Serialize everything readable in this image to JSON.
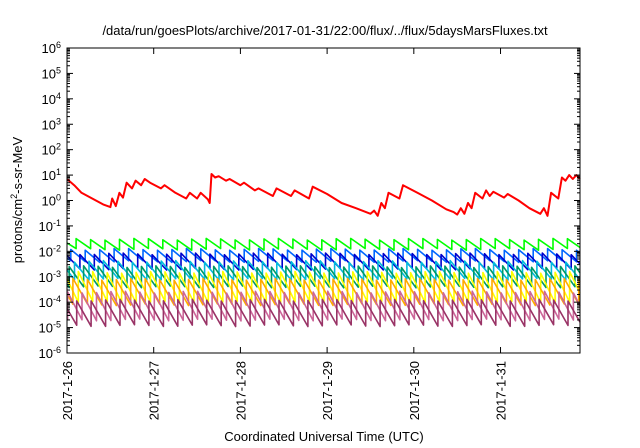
{
  "chart_data": {
    "type": "line",
    "title": "/data/run/goesPlots/archive/2017-01-31/22:00/flux/../flux/5daysMarsFluxes.txt",
    "xlabel": "Coordinated Universal Time (UTC)",
    "ylabel_parts": [
      "protons/cm",
      "2",
      "-s-sr-MeV"
    ],
    "yscale": "log",
    "ylim": [
      1e-06,
      1000000.0
    ],
    "xlim": [
      "2017-01-26T00:00",
      "2017-01-31T22:00"
    ],
    "x_ticks": [
      "2017-1-26",
      "2017-1-27",
      "2017-1-28",
      "2017-1-29",
      "2017-1-30",
      "2017-1-31"
    ],
    "y_ticks": [
      {
        "base": "10",
        "exp": "-6"
      },
      {
        "base": "10",
        "exp": "-5"
      },
      {
        "base": "10",
        "exp": "-4"
      },
      {
        "base": "10",
        "exp": "-3"
      },
      {
        "base": "10",
        "exp": "-2"
      },
      {
        "base": "10",
        "exp": "-1"
      },
      {
        "base": "10",
        "exp": "0"
      },
      {
        "base": "10",
        "exp": "1"
      },
      {
        "base": "10",
        "exp": "2"
      },
      {
        "base": "10",
        "exp": "3"
      },
      {
        "base": "10",
        "exp": "4"
      },
      {
        "base": "10",
        "exp": "5"
      },
      {
        "base": "10",
        "exp": "6"
      }
    ],
    "grid": false,
    "legend": "none",
    "sawtooth_period_hours": 4,
    "series": [
      {
        "color": "#ff0000",
        "style": "sawtooth-decay",
        "points": [
          [
            "2017-01-26T00:00",
            7
          ],
          [
            "2017-01-26T02:00",
            4
          ],
          [
            "2017-01-26T04:00",
            2
          ],
          [
            "2017-01-26T08:00",
            1
          ],
          [
            "2017-01-26T10:00",
            0.7
          ],
          [
            "2017-01-26T12:00",
            0.55
          ],
          [
            "2017-01-26T12:30",
            1.2
          ],
          [
            "2017-01-26T13:30",
            0.6
          ],
          [
            "2017-01-26T14:30",
            2
          ],
          [
            "2017-01-26T15:30",
            1.3
          ],
          [
            "2017-01-26T16:30",
            5
          ],
          [
            "2017-01-26T18:00",
            3
          ],
          [
            "2017-01-26T19:00",
            6
          ],
          [
            "2017-01-26T20:30",
            4
          ],
          [
            "2017-01-26T21:30",
            7
          ],
          [
            "2017-01-26T23:00",
            5
          ],
          [
            "2017-01-27T02:00",
            3
          ],
          [
            "2017-01-27T03:00",
            4
          ],
          [
            "2017-01-27T06:00",
            2
          ],
          [
            "2017-01-27T09:00",
            1.2
          ],
          [
            "2017-01-27T10:00",
            2
          ],
          [
            "2017-01-27T12:00",
            1.2
          ],
          [
            "2017-01-27T13:00",
            2
          ],
          [
            "2017-01-27T15:00",
            1.1
          ],
          [
            "2017-01-27T15:30",
            0.8
          ],
          [
            "2017-01-27T16:00",
            11
          ],
          [
            "2017-01-27T17:00",
            8
          ],
          [
            "2017-01-27T18:00",
            9
          ],
          [
            "2017-01-27T20:00",
            6
          ],
          [
            "2017-01-27T21:00",
            7
          ],
          [
            "2017-01-28T00:00",
            4
          ],
          [
            "2017-01-28T01:00",
            5
          ],
          [
            "2017-01-28T04:00",
            2.5
          ],
          [
            "2017-01-28T05:00",
            3
          ],
          [
            "2017-01-28T09:00",
            1.5
          ],
          [
            "2017-01-28T10:00",
            3
          ],
          [
            "2017-01-28T14:00",
            1.5
          ],
          [
            "2017-01-28T15:00",
            2.5
          ],
          [
            "2017-01-28T19:00",
            1.2
          ],
          [
            "2017-01-28T20:00",
            3.5
          ],
          [
            "2017-01-29T00:00",
            1.8
          ],
          [
            "2017-01-29T04:00",
            0.8
          ],
          [
            "2017-01-29T08:00",
            0.5
          ],
          [
            "2017-01-29T12:00",
            0.3
          ],
          [
            "2017-01-29T13:00",
            0.4
          ],
          [
            "2017-01-29T14:00",
            0.25
          ],
          [
            "2017-01-29T15:00",
            0.8
          ],
          [
            "2017-01-29T16:00",
            0.5
          ],
          [
            "2017-01-29T17:00",
            2
          ],
          [
            "2017-01-29T20:00",
            1.2
          ],
          [
            "2017-01-29T21:00",
            4
          ],
          [
            "2017-01-30T01:00",
            2
          ],
          [
            "2017-01-30T05:00",
            1
          ],
          [
            "2017-01-30T09:00",
            0.45
          ],
          [
            "2017-01-30T11:00",
            0.35
          ],
          [
            "2017-01-30T12:00",
            0.28
          ],
          [
            "2017-01-30T13:00",
            0.5
          ],
          [
            "2017-01-30T14:00",
            0.3
          ],
          [
            "2017-01-30T15:00",
            0.8
          ],
          [
            "2017-01-30T16:00",
            0.5
          ],
          [
            "2017-01-30T17:00",
            2
          ],
          [
            "2017-01-30T19:00",
            1.2
          ],
          [
            "2017-01-30T20:00",
            2.5
          ],
          [
            "2017-01-30T21:00",
            1.5
          ],
          [
            "2017-01-30T22:00",
            2.2
          ],
          [
            "2017-01-31T01:00",
            1.3
          ],
          [
            "2017-01-31T02:00",
            1.8
          ],
          [
            "2017-01-31T05:00",
            1
          ],
          [
            "2017-01-31T08:00",
            0.5
          ],
          [
            "2017-01-31T11:00",
            0.3
          ],
          [
            "2017-01-31T12:00",
            0.5
          ],
          [
            "2017-01-31T13:00",
            0.25
          ],
          [
            "2017-01-31T14:00",
            2
          ],
          [
            "2017-01-31T16:00",
            1.2
          ],
          [
            "2017-01-31T17:00",
            8
          ],
          [
            "2017-01-31T18:00",
            6
          ],
          [
            "2017-01-31T19:00",
            10
          ],
          [
            "2017-01-31T20:00",
            7
          ],
          [
            "2017-01-31T21:00",
            10
          ],
          [
            "2017-01-31T22:00",
            7
          ]
        ]
      },
      {
        "color": "#00ff00",
        "style": "sawtooth",
        "high": 0.03,
        "low": 0.012
      },
      {
        "color": "#0066ff",
        "style": "sawtooth",
        "high": 0.012,
        "low": 0.004
      },
      {
        "color": "#0000cc",
        "style": "sawtooth",
        "high": 0.008,
        "low": 0.002
      },
      {
        "color": "#00bbdd",
        "style": "sawtooth",
        "high": 0.004,
        "low": 0.0008
      },
      {
        "color": "#009966",
        "style": "sawtooth",
        "high": 0.0025,
        "low": 0.0004
      },
      {
        "color": "#ffff00",
        "style": "sawtooth",
        "high": 0.0015,
        "low": 0.0001
      },
      {
        "color": "#ffaa00",
        "style": "sawtooth",
        "high": 0.0008,
        "low": 8e-05
      },
      {
        "color": "#cc6699",
        "style": "sawtooth",
        "high": 0.00025,
        "low": 2e-05
      },
      {
        "color": "#993366",
        "style": "sawtooth",
        "high": 0.00012,
        "low": 1.2e-05
      }
    ]
  }
}
